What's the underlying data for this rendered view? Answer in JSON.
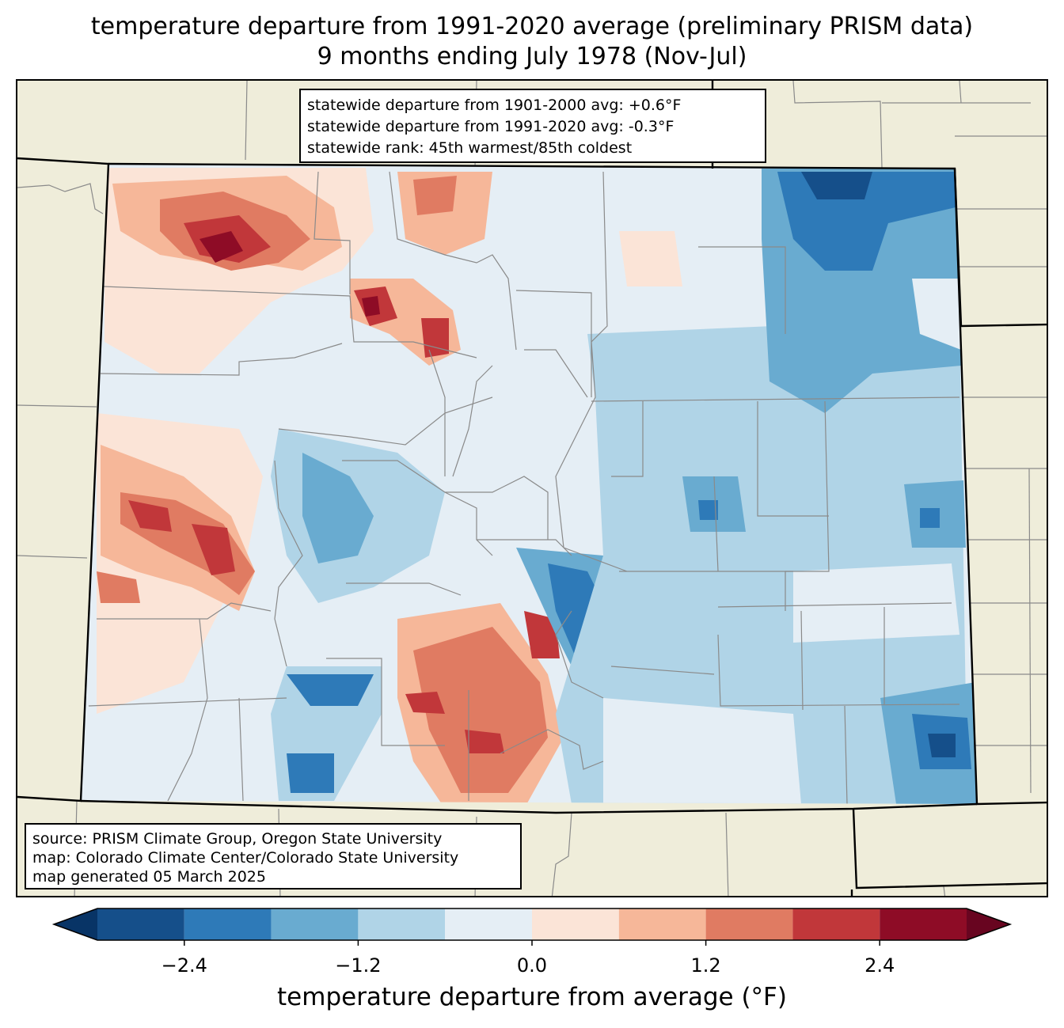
{
  "title": {
    "line1": "temperature departure from 1991-2020 average (preliminary PRISM data)",
    "line2": "9 months ending July 1978 (Nov-Jul)"
  },
  "stats": {
    "line1": "statewide departure from 1901-2000 avg: +0.6°F",
    "line2": "statewide departure from 1991-2020 avg: -0.3°F",
    "line3": "statewide rank: 45th warmest/85th coldest"
  },
  "source": {
    "line1": "source: PRISM Climate Group, Oregon State University",
    "line2": "map: Colorado Climate Center/Colorado State University",
    "line3": "map generated 05 March 2025"
  },
  "colorbar": {
    "label": "temperature departure from average (°F)",
    "bins": [
      -3.0,
      -2.4,
      -1.8,
      -1.2,
      -0.6,
      0.0,
      0.6,
      1.2,
      1.8,
      2.4,
      3.0
    ],
    "colors": [
      "#154f8a",
      "#2e7ab8",
      "#69abd0",
      "#b0d4e7",
      "#e5eef5",
      "#fbe4d7",
      "#f6b799",
      "#e07b62",
      "#c1373a",
      "#8e0c26"
    ],
    "extend_low_color": "#083466",
    "extend_high_color": "#680520",
    "ticks": [
      "−2.4",
      "−1.2",
      "0.0",
      "1.2",
      "2.4"
    ],
    "tick_values": [
      -2.4,
      -1.2,
      0.0,
      1.2,
      2.4
    ]
  },
  "colors": {
    "land": "#efedda",
    "county_lines": "#8a8a8a",
    "state_lines": "#000000"
  }
}
